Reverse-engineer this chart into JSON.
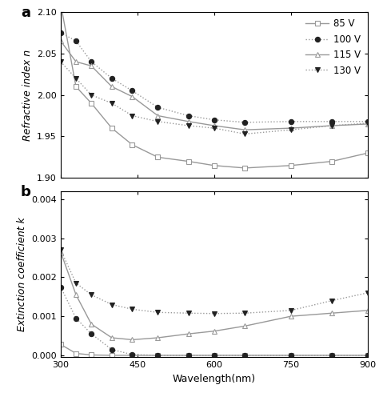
{
  "panel_a_label": "a",
  "panel_b_label": "b",
  "xlabel": "Wavelength(nm)",
  "ylabel_a": "Refractive index n",
  "ylabel_b": "Extinction coefficient k",
  "xlim": [
    300,
    900
  ],
  "ylim_a": [
    1.9,
    2.1
  ],
  "ylim_b": [
    -5e-05,
    0.0042
  ],
  "yticks_a": [
    1.9,
    1.95,
    2.0,
    2.05,
    2.1
  ],
  "yticks_b": [
    0.0,
    0.001,
    0.002,
    0.003,
    0.004
  ],
  "xticks": [
    300,
    450,
    600,
    750,
    900
  ],
  "legend_labels": [
    "85 V",
    "100 V",
    "115 V",
    "130 V"
  ],
  "series_85V_n_x": [
    300,
    330,
    360,
    400,
    440,
    490,
    550,
    600,
    660,
    750,
    830,
    900
  ],
  "series_85V_n_y": [
    2.11,
    2.01,
    1.99,
    1.96,
    1.94,
    1.925,
    1.92,
    1.915,
    1.912,
    1.915,
    1.92,
    1.93
  ],
  "series_100V_n_x": [
    300,
    330,
    360,
    400,
    440,
    490,
    550,
    600,
    660,
    750,
    830,
    900
  ],
  "series_100V_n_y": [
    2.075,
    2.065,
    2.04,
    2.02,
    2.005,
    1.985,
    1.975,
    1.97,
    1.967,
    1.968,
    1.968,
    1.968
  ],
  "series_115V_n_x": [
    300,
    330,
    360,
    400,
    440,
    490,
    550,
    600,
    660,
    750,
    830,
    900
  ],
  "series_115V_n_y": [
    2.065,
    2.04,
    2.035,
    2.01,
    1.998,
    1.975,
    1.968,
    1.963,
    1.958,
    1.96,
    1.963,
    1.965
  ],
  "series_130V_n_x": [
    300,
    330,
    360,
    400,
    440,
    490,
    550,
    600,
    660,
    750,
    830,
    900
  ],
  "series_130V_n_y": [
    2.04,
    2.02,
    2.0,
    1.99,
    1.975,
    1.968,
    1.963,
    1.96,
    1.953,
    1.958,
    1.963,
    1.966
  ],
  "series_85V_k_x": [
    300,
    330,
    360,
    400,
    440,
    490,
    550,
    600,
    660,
    750,
    830,
    900
  ],
  "series_85V_k_y": [
    0.00028,
    5e-05,
    1e-05,
    0.0,
    0.0,
    0.0,
    0.0,
    0.0,
    0.0,
    0.0,
    0.0,
    0.0
  ],
  "series_100V_k_x": [
    300,
    330,
    360,
    400,
    440,
    490,
    550,
    600,
    660,
    750,
    830,
    900
  ],
  "series_100V_k_y": [
    0.00175,
    0.00095,
    0.00055,
    0.00015,
    2e-05,
    0.0,
    0.0,
    0.0,
    0.0,
    0.0,
    0.0,
    0.0
  ],
  "series_115V_k_x": [
    300,
    330,
    360,
    400,
    440,
    490,
    550,
    600,
    660,
    750,
    830,
    900
  ],
  "series_115V_k_y": [
    0.00265,
    0.00155,
    0.0008,
    0.00045,
    0.0004,
    0.00045,
    0.00055,
    0.00062,
    0.00075,
    0.001,
    0.00108,
    0.00115
  ],
  "series_130V_k_x": [
    300,
    330,
    360,
    400,
    440,
    490,
    550,
    600,
    660,
    750,
    830,
    900
  ],
  "series_130V_k_y": [
    0.0027,
    0.00185,
    0.00155,
    0.0013,
    0.00118,
    0.0011,
    0.00108,
    0.00107,
    0.00108,
    0.00115,
    0.0014,
    0.0016
  ],
  "color_gray": "#999999",
  "color_marker_dark": "#222222",
  "bg_color": "#ffffff"
}
